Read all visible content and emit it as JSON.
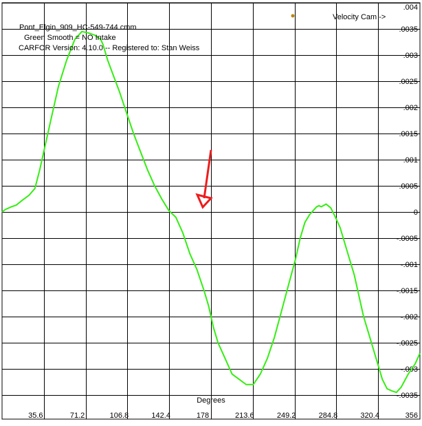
{
  "header": {
    "line1": "Pont_Elgin_909_HC-549-744.cmm",
    "line2": "Green  Smooth = NO    Intake",
    "line3": "CARFOR Version: 4.10.0 -- Registered to:   Stan Weiss"
  },
  "legend": {
    "label": "Velocity Cam ->",
    "marker_color": "#b8860b"
  },
  "colors": {
    "curve": "#33ee11",
    "grid": "#000000",
    "arrow": "#ee1c1c"
  },
  "chart_data": {
    "type": "line",
    "title": "",
    "xlabel": "Degrees",
    "ylabel": "",
    "xlim": [
      0,
      356
    ],
    "ylim": [
      -0.0035,
      0.004
    ],
    "grid": true,
    "x_ticks": [
      "35.6",
      "71.2",
      "106.8",
      "142.4",
      "178",
      "213.6",
      "249.2",
      "284.8",
      "320.4",
      "356"
    ],
    "y_ticks": [
      ".004",
      ".0035",
      ".003",
      ".0025",
      ".002",
      ".0015",
      ".001",
      ".0005",
      "0",
      "-.0005",
      "-.001",
      "-.0015",
      "-.002",
      "-.0025",
      "-.003",
      "-.0035"
    ],
    "series": [
      {
        "x": [
          0,
          3,
          8,
          12,
          17,
          23,
          28,
          32,
          36,
          42,
          48,
          55,
          62,
          68,
          74,
          79,
          84,
          86,
          90,
          95,
          100,
          106,
          112,
          118,
          124,
          130,
          136,
          142,
          148,
          154,
          160,
          166,
          172,
          176,
          178,
          180,
          184,
          190,
          196,
          202,
          208,
          214,
          220,
          226,
          232,
          238,
          244,
          250,
          254,
          258,
          262,
          264,
          266,
          268,
          270,
          272,
          276,
          280,
          284,
          288,
          292,
          296,
          300,
          304,
          308,
          312,
          316,
          320,
          324,
          328,
          332,
          336,
          340,
          346,
          352,
          356
        ],
        "y": [
          0.0,
          5e-05,
          0.0001,
          0.00013,
          0.00022,
          0.00032,
          0.00045,
          0.0008,
          0.0012,
          0.0018,
          0.0024,
          0.0029,
          0.0033,
          0.00345,
          0.00342,
          0.00338,
          0.0033,
          0.0032,
          0.0029,
          0.0026,
          0.0023,
          0.0019,
          0.0015,
          0.00115,
          0.0008,
          0.0005,
          0.00025,
          3e-05,
          -0.0001,
          -0.0004,
          -0.0008,
          -0.0011,
          -0.0015,
          -0.0018,
          -0.002,
          -0.0022,
          -0.0025,
          -0.0028,
          -0.0031,
          -0.0032,
          -0.0033,
          -0.0033,
          -0.0031,
          -0.0028,
          -0.0024,
          -0.0019,
          -0.0014,
          -0.0009,
          -0.0005,
          -0.0002,
          -5e-05,
          0.0,
          5e-05,
          0.0001,
          0.00012,
          0.0001,
          0.00015,
          8e-05,
          -0.0001,
          -0.0003,
          -0.0006,
          -0.0009,
          -0.0012,
          -0.0016,
          -0.002,
          -0.0023,
          -0.0026,
          -0.0029,
          -0.0032,
          -0.00338,
          -0.00342,
          -0.00345,
          -0.00335,
          -0.0031,
          -0.0029,
          -0.0027
        ]
      }
    ]
  }
}
